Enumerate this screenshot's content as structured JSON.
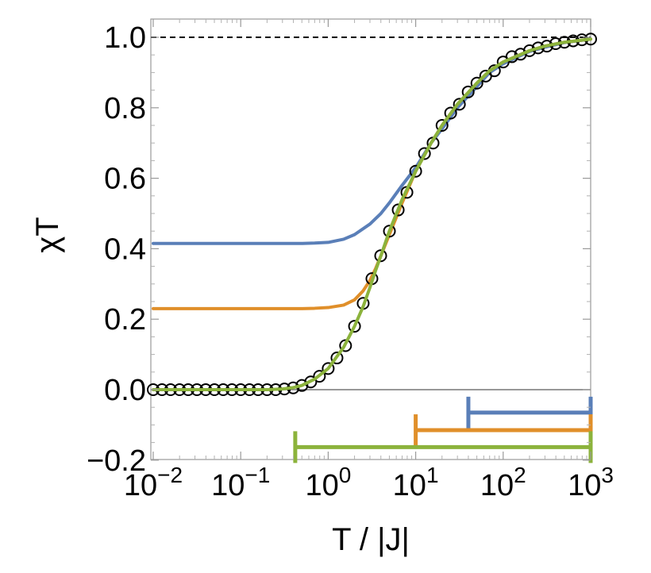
{
  "chart_data": {
    "type": "line",
    "title": "",
    "xlabel": "T / |J|",
    "ylabel": "χT",
    "xscale": "log",
    "xlim": [
      0.01,
      1000
    ],
    "ylim": [
      -0.2,
      1.05
    ],
    "grid": false,
    "legend": "none",
    "x_ticks": [
      {
        "value": 0.01,
        "base": "10",
        "exp": "−2"
      },
      {
        "value": 0.1,
        "base": "10",
        "exp": "−1"
      },
      {
        "value": 1,
        "base": "10",
        "exp": "0"
      },
      {
        "value": 10,
        "base": "10",
        "exp": "1"
      },
      {
        "value": 100,
        "base": "10",
        "exp": "2"
      },
      {
        "value": 1000,
        "base": "10",
        "exp": "3"
      }
    ],
    "y_ticks": [
      {
        "value": -0.2,
        "label": "−0.2"
      },
      {
        "value": 0.0,
        "label": "0.0"
      },
      {
        "value": 0.2,
        "label": "0.2"
      },
      {
        "value": 0.4,
        "label": "0.4"
      },
      {
        "value": 0.6,
        "label": "0.6"
      },
      {
        "value": 0.8,
        "label": "0.8"
      },
      {
        "value": 1.0,
        "label": "1.0"
      }
    ],
    "reference_lines": [
      {
        "y": 1.0,
        "style": "dashed",
        "color": "#000000"
      },
      {
        "y": 0.0,
        "style": "solid",
        "color": "#777777"
      }
    ],
    "series": [
      {
        "style": "line",
        "color": "#5a7fb8",
        "x": [
          0.01,
          0.1,
          0.3,
          0.5,
          0.7,
          1,
          1.5,
          2,
          3,
          4,
          5,
          7,
          10,
          15,
          20,
          30,
          50,
          70,
          100,
          200,
          300,
          500,
          1000
        ],
        "y": [
          0.415,
          0.415,
          0.415,
          0.415,
          0.416,
          0.418,
          0.427,
          0.44,
          0.47,
          0.5,
          0.53,
          0.58,
          0.63,
          0.7,
          0.74,
          0.8,
          0.86,
          0.9,
          0.925,
          0.96,
          0.972,
          0.985,
          0.995
        ]
      },
      {
        "style": "line",
        "color": "#e08f2a",
        "x": [
          0.01,
          0.1,
          0.3,
          0.5,
          0.7,
          1,
          1.5,
          2,
          2.5,
          3,
          3.5,
          4,
          5,
          7,
          10,
          15,
          20,
          30,
          50,
          70,
          100,
          200,
          300,
          500,
          1000
        ],
        "y": [
          0.23,
          0.23,
          0.23,
          0.23,
          0.231,
          0.233,
          0.24,
          0.255,
          0.28,
          0.31,
          0.345,
          0.38,
          0.44,
          0.53,
          0.62,
          0.7,
          0.75,
          0.81,
          0.87,
          0.905,
          0.93,
          0.962,
          0.975,
          0.986,
          0.995
        ]
      },
      {
        "style": "line",
        "color": "#8cb33c",
        "x": [
          0.01,
          0.1,
          0.2,
          0.3,
          0.4,
          0.5,
          0.7,
          1,
          1.5,
          2,
          2.5,
          3,
          3.5,
          4,
          5,
          7,
          10,
          15,
          20,
          30,
          50,
          70,
          100,
          200,
          300,
          500,
          1000
        ],
        "y": [
          0.0,
          0.0,
          0.0,
          0.002,
          0.006,
          0.012,
          0.03,
          0.06,
          0.12,
          0.18,
          0.235,
          0.29,
          0.34,
          0.38,
          0.45,
          0.54,
          0.62,
          0.7,
          0.75,
          0.81,
          0.87,
          0.905,
          0.93,
          0.962,
          0.975,
          0.986,
          0.995
        ]
      },
      {
        "style": "markers",
        "marker": "open-circle",
        "color": "#000000",
        "x": [
          0.01,
          0.0126,
          0.0158,
          0.02,
          0.0251,
          0.0316,
          0.0398,
          0.0501,
          0.0631,
          0.0794,
          0.1,
          0.126,
          0.158,
          0.2,
          0.251,
          0.316,
          0.398,
          0.501,
          0.631,
          0.794,
          1,
          1.26,
          1.58,
          2,
          2.51,
          3.16,
          3.98,
          5.01,
          6.31,
          7.94,
          10,
          12.6,
          15.8,
          20,
          25.1,
          31.6,
          39.8,
          50.1,
          63.1,
          79.4,
          100,
          126,
          158,
          200,
          251,
          316,
          398,
          501,
          631,
          794,
          1000
        ],
        "y": [
          0.0,
          0.0,
          0.0,
          0.0,
          0.0,
          0.0,
          0.0,
          0.0,
          0.0,
          0.0,
          0.0,
          0.0,
          0.0,
          0.0,
          0.0,
          0.002,
          0.005,
          0.012,
          0.022,
          0.038,
          0.06,
          0.09,
          0.125,
          0.18,
          0.245,
          0.315,
          0.38,
          0.45,
          0.51,
          0.56,
          0.62,
          0.67,
          0.7,
          0.75,
          0.785,
          0.81,
          0.845,
          0.87,
          0.89,
          0.905,
          0.93,
          0.945,
          0.952,
          0.962,
          0.97,
          0.975,
          0.982,
          0.986,
          0.99,
          0.993,
          0.995
        ]
      }
    ],
    "range_bars": [
      {
        "color": "#5a7fb8",
        "x_start": 40,
        "x_end": 1000,
        "y": -0.065
      },
      {
        "color": "#e08f2a",
        "x_start": 10,
        "x_end": 1000,
        "y": -0.115
      },
      {
        "color": "#8cb33c",
        "x_start": 0.42,
        "x_end": 1000,
        "y": -0.163
      }
    ]
  }
}
